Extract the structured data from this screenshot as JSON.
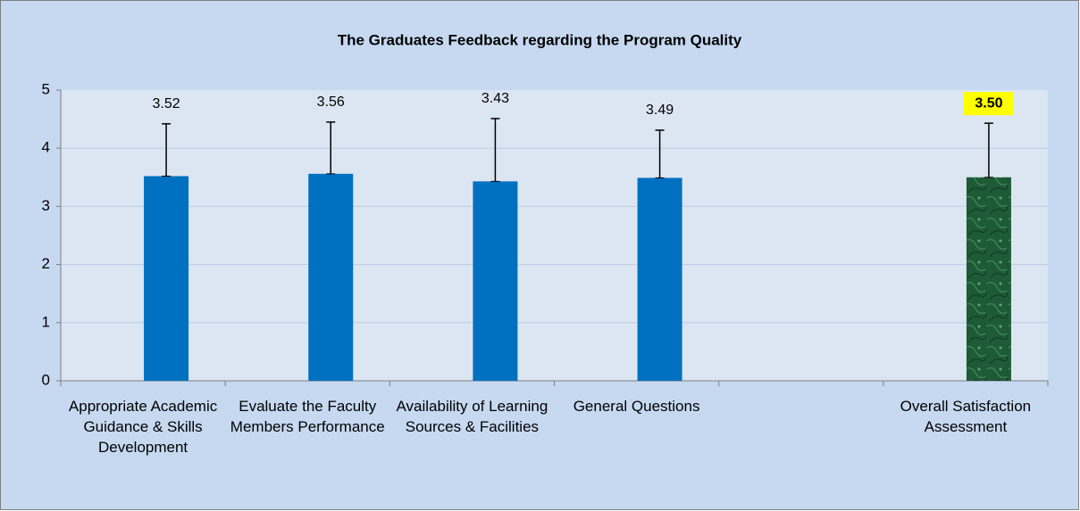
{
  "chart_data": {
    "type": "bar",
    "title": "The Graduates Feedback regarding the Program Quality",
    "categories": [
      "Appropriate Academic Guidance & Skills Development",
      "Evaluate the Faculty Members Performance",
      "Availability of Learning Sources & Facilities",
      "General Questions",
      null,
      "Overall Satisfaction Assessment"
    ],
    "values": [
      3.52,
      3.56,
      3.43,
      3.49,
      null,
      3.5
    ],
    "value_labels": [
      "3.52",
      "3.56",
      "3.43",
      "3.49",
      null,
      "3.50"
    ],
    "errors": [
      0.9,
      0.89,
      1.08,
      0.82,
      null,
      0.93
    ],
    "colors": [
      "#0070c0",
      "#0070c0",
      "#0070c0",
      "#0070c0",
      null,
      "#1e5a36"
    ],
    "label_backgrounds": [
      null,
      null,
      null,
      null,
      null,
      "#ffff00"
    ],
    "ylim": [
      0,
      5
    ],
    "yticks": [
      0,
      1,
      2,
      3,
      4,
      5
    ],
    "grid": true
  }
}
